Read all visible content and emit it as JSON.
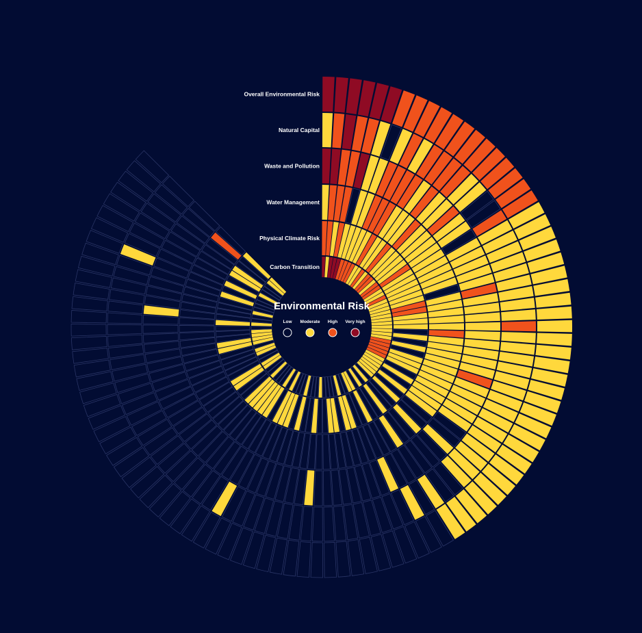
{
  "chart_data": {
    "type": "radial-heatmap",
    "title": "Environmental Risk",
    "legend": [
      {
        "label": "Low",
        "level": 0,
        "color": "#020c33"
      },
      {
        "label": "Moderate",
        "level": 1,
        "color": "#ffd83c"
      },
      {
        "label": "High",
        "level": 2,
        "color": "#f0521c"
      },
      {
        "label": "Very high",
        "level": 3,
        "color": "#8f0b24"
      }
    ],
    "empty_cell_stroke": "#2a3566",
    "category_count": 100,
    "angular_span_degrees": 315,
    "rings": [
      {
        "name": "Overall Environmental Risk",
        "levels": [
          3,
          3,
          3,
          3,
          3,
          3,
          2,
          2,
          2,
          2,
          2,
          2,
          2,
          2,
          2,
          2,
          2,
          2,
          2,
          1,
          1,
          1,
          1,
          1,
          1,
          1,
          1,
          1,
          1,
          1,
          1,
          1,
          1,
          1,
          1,
          1,
          1,
          1,
          1,
          1,
          1,
          1,
          1,
          1,
          1,
          1,
          1,
          0,
          0,
          0,
          0,
          0,
          0,
          0,
          0,
          0,
          0,
          0,
          0,
          0,
          0,
          0,
          0,
          0,
          0,
          0,
          0,
          0,
          0,
          0,
          0,
          0,
          0,
          0,
          0,
          0,
          0,
          0,
          0,
          0,
          0,
          0,
          0,
          0,
          0,
          0,
          0,
          0,
          0,
          0,
          0,
          0,
          0,
          0,
          0,
          0,
          0,
          0,
          0,
          0
        ]
      },
      {
        "name": "Natural Capital",
        "levels": [
          1,
          2,
          3,
          2,
          2,
          1,
          0,
          1,
          2,
          1,
          2,
          2,
          2,
          2,
          1,
          1,
          0,
          0,
          2,
          1,
          1,
          1,
          1,
          1,
          1,
          1,
          1,
          1,
          2,
          1,
          1,
          1,
          1,
          1,
          1,
          1,
          1,
          1,
          1,
          1,
          1,
          1,
          1,
          1,
          0,
          0,
          1,
          0,
          1,
          0,
          0,
          0,
          0,
          0,
          0,
          0,
          0,
          0,
          0,
          0,
          0,
          0,
          0,
          0,
          0,
          0,
          1,
          0,
          0,
          0,
          0,
          0,
          0,
          0,
          0,
          0,
          0,
          0,
          0,
          0,
          0,
          0,
          0,
          0,
          0,
          0,
          0,
          0,
          0,
          0,
          0,
          0,
          1,
          0,
          0,
          0,
          0,
          0,
          0,
          0
        ]
      },
      {
        "name": "Waste and Pollution",
        "levels": [
          3,
          3,
          2,
          2,
          3,
          1,
          1,
          2,
          2,
          2,
          2,
          1,
          2,
          1,
          1,
          2,
          1,
          1,
          0,
          1,
          1,
          1,
          1,
          1,
          2,
          1,
          1,
          1,
          1,
          1,
          1,
          1,
          1,
          1,
          2,
          1,
          1,
          1,
          1,
          1,
          0,
          0,
          1,
          0,
          0,
          0,
          0,
          0,
          0,
          1,
          0,
          0,
          0,
          0,
          0,
          0,
          0,
          0,
          1,
          0,
          0,
          0,
          0,
          0,
          0,
          0,
          0,
          0,
          0,
          0,
          0,
          0,
          0,
          0,
          0,
          0,
          0,
          0,
          0,
          0,
          0,
          0,
          0,
          0,
          0,
          0,
          0,
          1,
          0,
          0,
          0,
          0,
          0,
          0,
          0,
          0,
          0,
          0,
          0,
          0
        ]
      },
      {
        "name": "Water Management",
        "levels": [
          1,
          2,
          2,
          2,
          0,
          1,
          1,
          2,
          2,
          2,
          1,
          1,
          1,
          2,
          1,
          1,
          1,
          1,
          1,
          1,
          1,
          1,
          1,
          0,
          1,
          1,
          1,
          1,
          1,
          2,
          1,
          1,
          1,
          1,
          1,
          1,
          1,
          1,
          1,
          1,
          1,
          0,
          0,
          1,
          0,
          0,
          1,
          0,
          0,
          0,
          0,
          0,
          0,
          0,
          0,
          0,
          0,
          0,
          0,
          0,
          0,
          0,
          0,
          0,
          0,
          0,
          0,
          0,
          0,
          0,
          0,
          0,
          0,
          0,
          0,
          0,
          0,
          0,
          0,
          0,
          0,
          0,
          0,
          0,
          0,
          0,
          0,
          0,
          0,
          0,
          0,
          0,
          0,
          0,
          0,
          0,
          0,
          0,
          2,
          0
        ]
      },
      {
        "name": "Physical Climate Risk",
        "levels": [
          2,
          2,
          1,
          2,
          1,
          1,
          1,
          1,
          1,
          2,
          1,
          1,
          2,
          1,
          1,
          1,
          1,
          2,
          1,
          1,
          1,
          1,
          1,
          1,
          2,
          2,
          1,
          1,
          1,
          0,
          1,
          0,
          1,
          0,
          1,
          1,
          1,
          0,
          1,
          0,
          1,
          0,
          1,
          0,
          0,
          1,
          0,
          0,
          1,
          0,
          0,
          1,
          1,
          0,
          1,
          1,
          0,
          0,
          1,
          0,
          0,
          1,
          0,
          1,
          1,
          1,
          0,
          1,
          1,
          1,
          1,
          1,
          0,
          0,
          1,
          1,
          0,
          0,
          0,
          0,
          0,
          1,
          1,
          0,
          0,
          0,
          1,
          0,
          0,
          0,
          0,
          1,
          0,
          1,
          0,
          1,
          1,
          0,
          0,
          1
        ]
      },
      {
        "name": "Carbon Transition",
        "levels": [
          3,
          1,
          3,
          3,
          3,
          2,
          2,
          2,
          2,
          1,
          1,
          2,
          1,
          2,
          2,
          1,
          2,
          2,
          1,
          1,
          2,
          1,
          1,
          1,
          1,
          1,
          1,
          1,
          1,
          1,
          1,
          1,
          2,
          2,
          2,
          2,
          2,
          1,
          1,
          1,
          1,
          1,
          1,
          0,
          1,
          0,
          1,
          0,
          1,
          1,
          0,
          0,
          1,
          0,
          0,
          0,
          0,
          1,
          0,
          0,
          0,
          1,
          0,
          0,
          0,
          1,
          0,
          1,
          0,
          0,
          0,
          1,
          0,
          0,
          1,
          1,
          0,
          0,
          1,
          1,
          0,
          1,
          1,
          1,
          1,
          0,
          1,
          0,
          0,
          1,
          0,
          0,
          0,
          0,
          1,
          0,
          0,
          0,
          1,
          1
        ]
      }
    ]
  }
}
